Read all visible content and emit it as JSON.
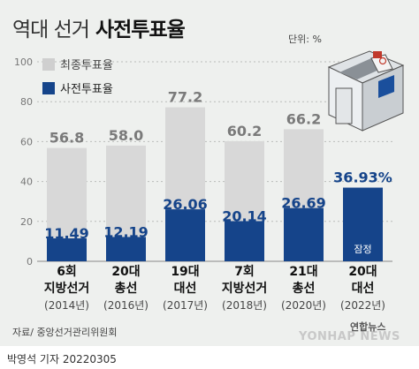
{
  "header": {
    "title_light": "역대 선거",
    "title_bold": "사전투표율",
    "unit": "단위: %"
  },
  "footer": {
    "source": "자료/ 중앙선거관리위원회",
    "credit": "박영석 기자  20220305",
    "watermark": "YONHAP NEWS",
    "logo": "연합뉴스"
  },
  "colors": {
    "total": "#d8d8d8",
    "early": "#15448a",
    "early_label": "#ffffff",
    "total_label": "#7a7a7a",
    "background": "#eef0ee"
  },
  "icon": "ballot-box-icon",
  "chart_data": {
    "type": "bar",
    "ylim": [
      0,
      100
    ],
    "yticks": [
      0,
      20,
      40,
      60,
      80,
      100
    ],
    "legend": "top-left",
    "categories": [
      [
        "6회",
        "지방선거",
        "(2014년)"
      ],
      [
        "20대",
        "총선",
        "(2016년)"
      ],
      [
        "19대",
        "대선",
        "(2017년)"
      ],
      [
        "7회",
        "지방선거",
        "(2018년)"
      ],
      [
        "21대",
        "총선",
        "(2020년)"
      ],
      [
        "20대",
        "대선",
        "(2022년)"
      ]
    ],
    "series": [
      {
        "name": "최종투표율",
        "values": [
          56.8,
          58.0,
          77.2,
          60.2,
          66.2,
          null
        ],
        "labels": [
          "56.8",
          "58.0",
          "77.2",
          "60.2",
          "66.2",
          ""
        ]
      },
      {
        "name": "사전투표율",
        "values": [
          11.49,
          12.19,
          26.06,
          20.14,
          26.69,
          36.93
        ],
        "labels": [
          "11.49",
          "12.19",
          "26.06",
          "20.14",
          "26.69",
          "36.93%"
        ]
      }
    ],
    "annotations": [
      {
        "category_index": 5,
        "text": "잠정"
      }
    ]
  }
}
